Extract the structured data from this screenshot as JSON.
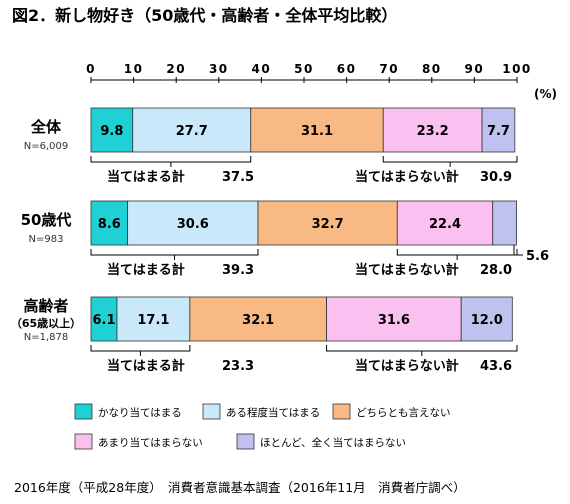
{
  "chart_data": {
    "type": "bar",
    "orientation": "horizontal",
    "stacked": true,
    "title": "図2．新し物好き（50歳代・高齢者・全体平均比較）",
    "unit_label": "(%)",
    "xlim": [
      0,
      100
    ],
    "ticks": [
      0,
      10,
      20,
      30,
      40,
      50,
      60,
      70,
      80,
      90,
      100
    ],
    "legend_position": "bottom",
    "series": [
      {
        "name": "かなり当てはまる",
        "color": "#1fd0d4"
      },
      {
        "name": "ある程度当てはまる",
        "color": "#c9e9fb"
      },
      {
        "name": "どちらとも言えない",
        "color": "#f8b985"
      },
      {
        "name": "あまり当てはまらない",
        "color": "#f9c0f0"
      },
      {
        "name": "ほとんど、全く当てはまらない",
        "color": "#bfc1ee"
      }
    ],
    "rows": [
      {
        "label": "全体",
        "sublabel": "",
        "n": "N=6,009",
        "values": [
          9.8,
          27.7,
          31.1,
          23.2,
          7.7
        ],
        "value_labels": [
          "9.8",
          "27.7",
          "31.1",
          "23.2",
          "7.7"
        ],
        "agree_label": "当てはまる計",
        "agree_total": "37.5",
        "disagree_label": "当てはまらない計",
        "disagree_total": "30.9",
        "outside_label": ""
      },
      {
        "label": "50歳代",
        "sublabel": "",
        "n": "N=983",
        "values": [
          8.6,
          30.6,
          32.7,
          22.4,
          5.6
        ],
        "value_labels": [
          "8.6",
          "30.6",
          "32.7",
          "22.4",
          ""
        ],
        "agree_label": "当てはまる計",
        "agree_total": "39.3",
        "disagree_label": "当てはまらない計",
        "disagree_total": "28.0",
        "outside_label": "5.6"
      },
      {
        "label": "高齢者",
        "sublabel": "（65歳以上）",
        "n": "N=1,878",
        "values": [
          6.1,
          17.1,
          32.1,
          31.6,
          12.0
        ],
        "value_labels": [
          "6.1",
          "17.1",
          "32.1",
          "31.6",
          "12.0"
        ],
        "agree_label": "当てはまる計",
        "agree_total": "23.3",
        "disagree_label": "当てはまらない計",
        "disagree_total": "43.6",
        "outside_label": ""
      }
    ]
  },
  "footer": {
    "source": "2016年度（平成28年度）　消費者意識基本調査（2016年11月　消費者庁調べ）"
  }
}
